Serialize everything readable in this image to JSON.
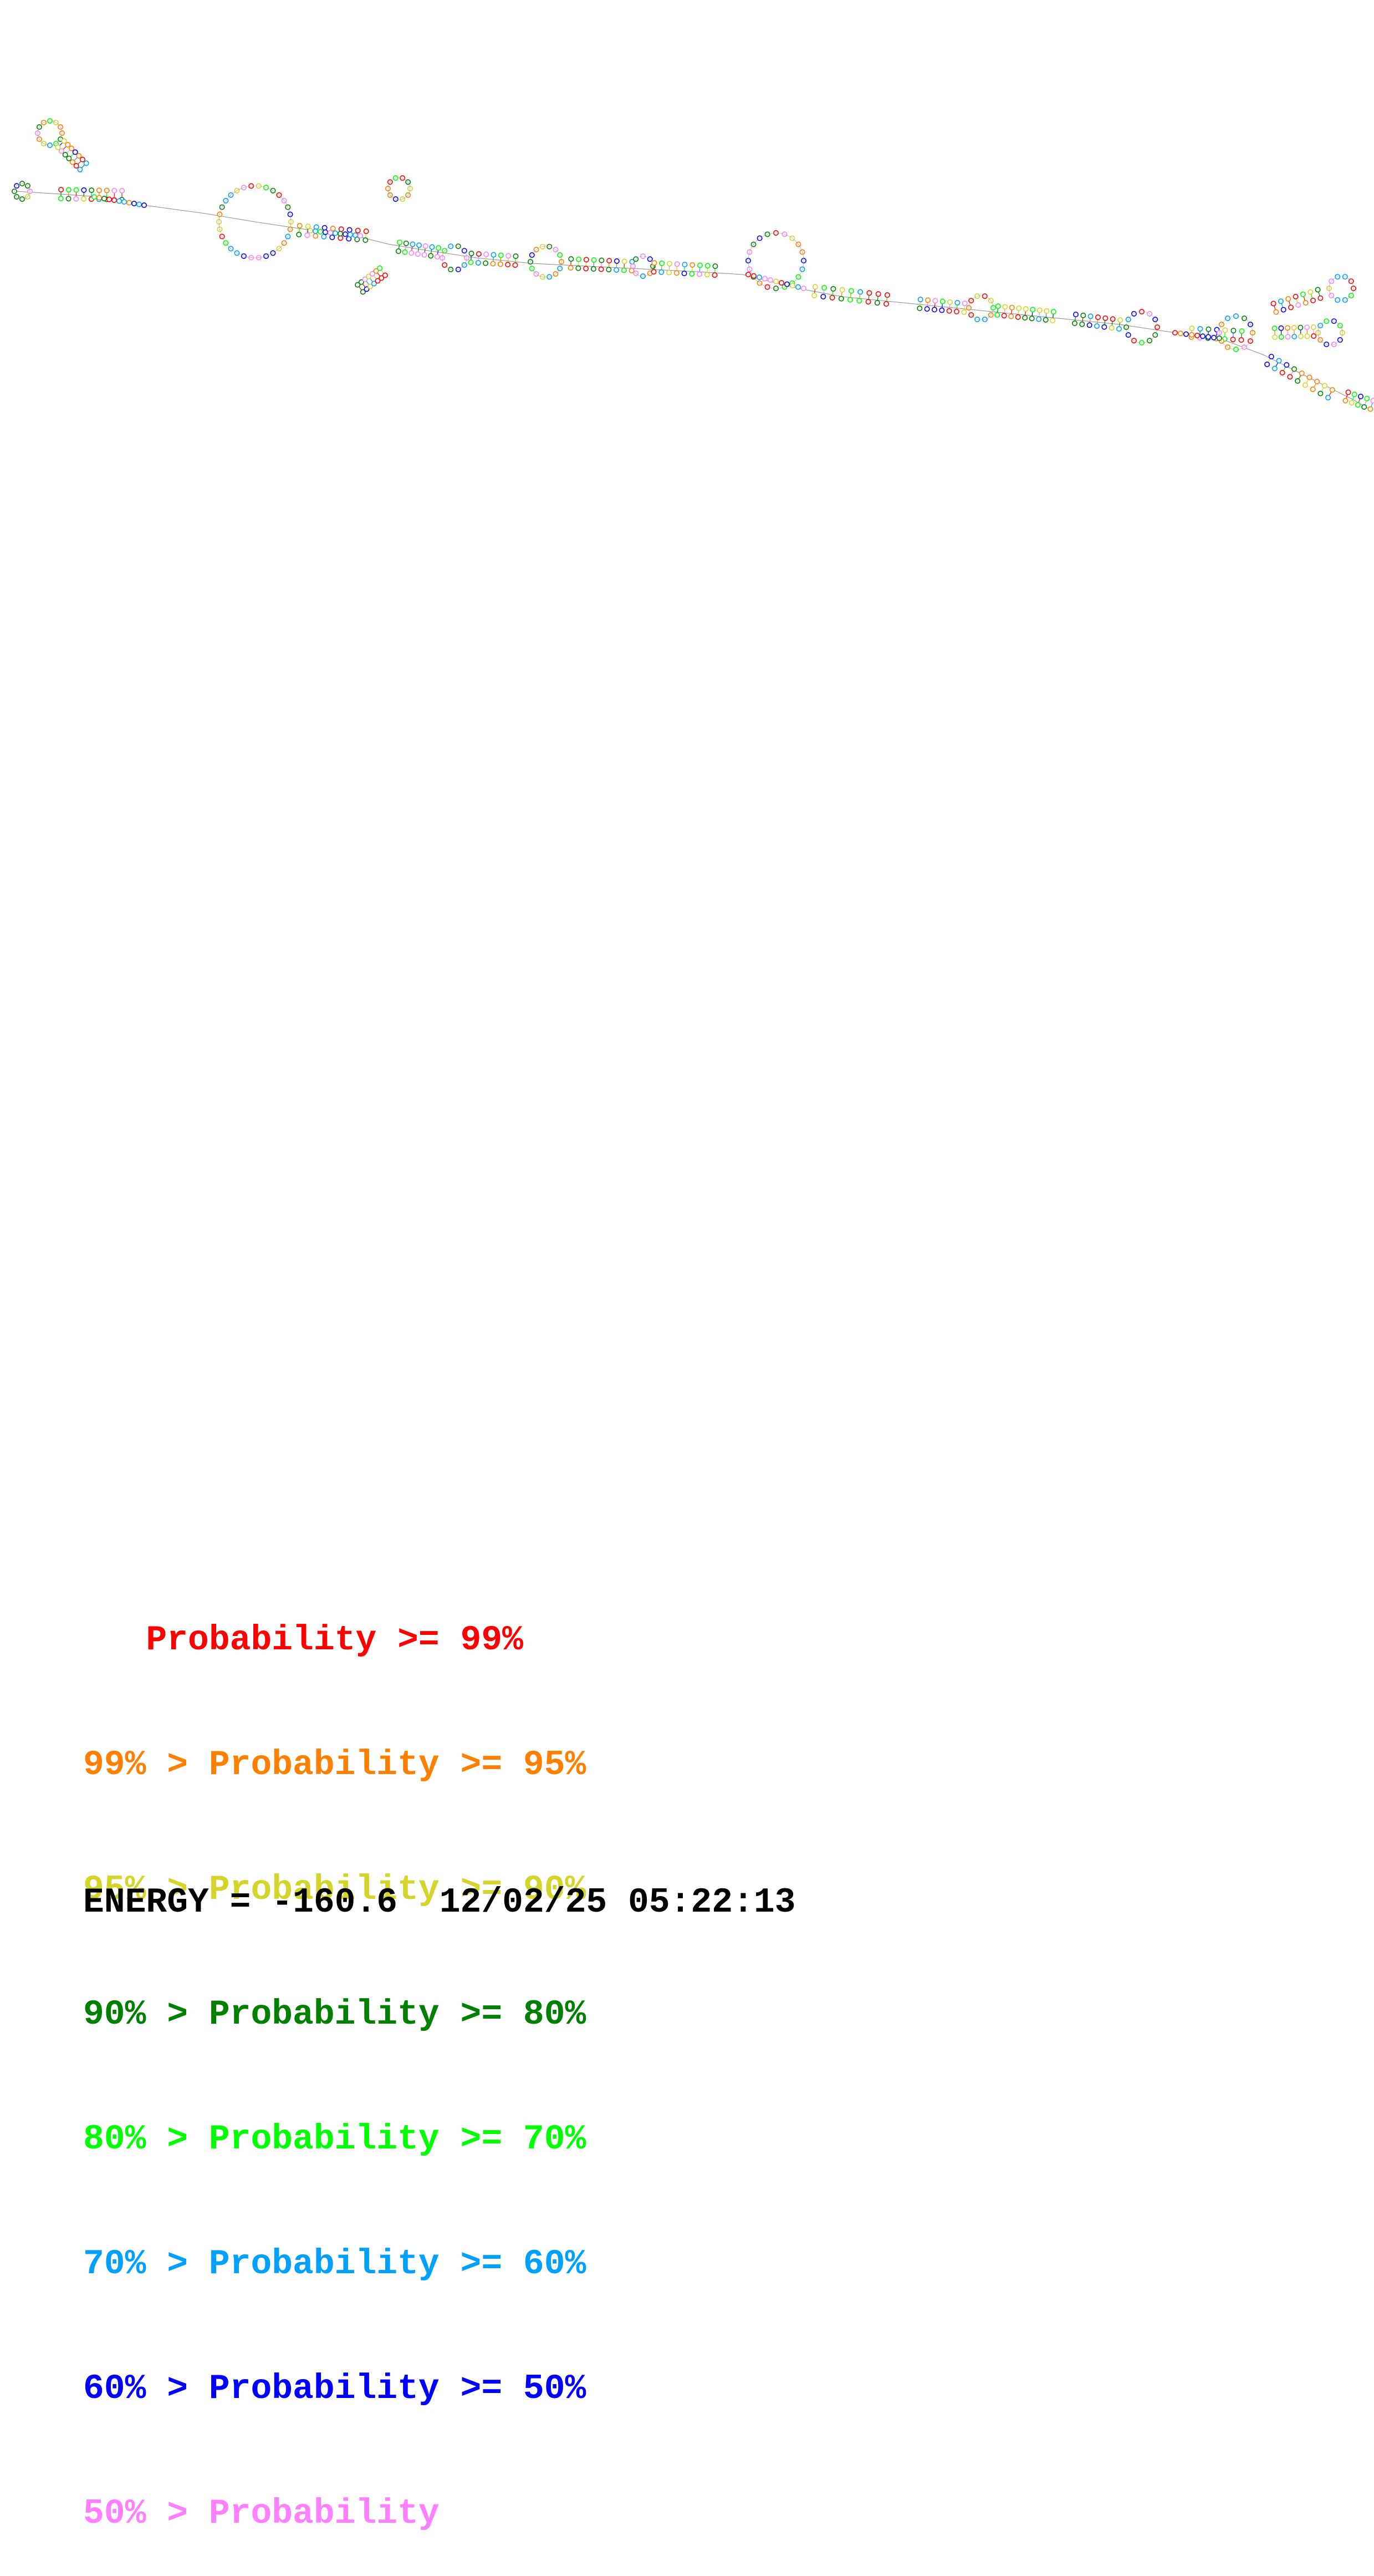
{
  "palette": {
    "p99": "#ff0000",
    "p95": "#ff8000",
    "p90": "#d4d42a",
    "p80": "#008000",
    "p70": "#00ff00",
    "p60": "#00a0ff",
    "p50": "#0000ff",
    "plow": "#ff80ff"
  },
  "legend": [
    {
      "key": "p99",
      "text": "   Probability >= 99%"
    },
    {
      "key": "p95",
      "text": "99% > Probability >= 95%"
    },
    {
      "key": "p90",
      "text": "95% > Probability >= 90%"
    },
    {
      "key": "p80",
      "text": "90% > Probability >= 80%"
    },
    {
      "key": "p70",
      "text": "80% > Probability >= 70%"
    },
    {
      "key": "p60",
      "text": "70% > Probability >= 60%"
    },
    {
      "key": "p50",
      "text": "60% > Probability >= 50%"
    },
    {
      "key": "plow",
      "text": "50% > Probability"
    }
  ],
  "footer": {
    "energy_label": "ENERGY = ",
    "energy_value": "-160.6",
    "timestamp": "12/02/25 05:22:13"
  }
}
